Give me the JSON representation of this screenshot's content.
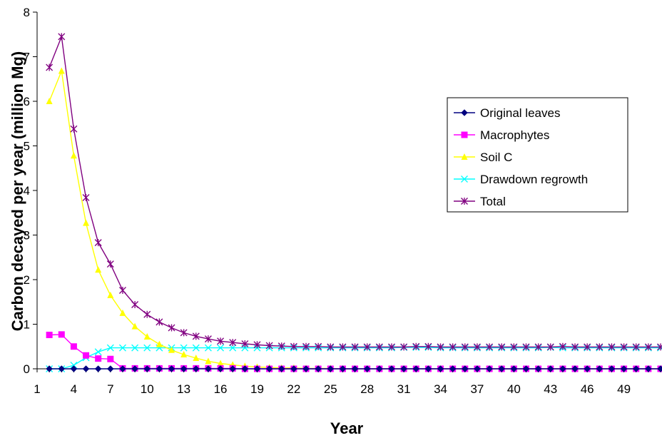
{
  "chart_data": {
    "type": "line",
    "xlabel": "Year",
    "ylabel": "Carbon decayed per year (million Mg)",
    "x": [
      2,
      3,
      4,
      5,
      6,
      7,
      8,
      9,
      10,
      11,
      12,
      13,
      14,
      15,
      16,
      17,
      18,
      19,
      20,
      21,
      22,
      23,
      24,
      25,
      26,
      27,
      28,
      29,
      30,
      31,
      32,
      33,
      34,
      35,
      36,
      37,
      38,
      39,
      40,
      41,
      42,
      43,
      44,
      45,
      46,
      47,
      48,
      49,
      50,
      51,
      52
    ],
    "xlim": [
      1,
      52
    ],
    "ylim": [
      0,
      8
    ],
    "y_ticks": [
      0,
      1,
      2,
      3,
      4,
      5,
      6,
      7,
      8
    ],
    "x_tick_labels": [
      "1",
      "4",
      "7",
      "10",
      "13",
      "16",
      "19",
      "22",
      "25",
      "28",
      "31",
      "34",
      "37",
      "40",
      "43",
      "46",
      "49"
    ],
    "grid": false,
    "legend_position": "right",
    "series": [
      {
        "name": "Original leaves",
        "color": "#000080",
        "marker": "diamond",
        "values": [
          0,
          0,
          0,
          0,
          0,
          0,
          0,
          0,
          0,
          0,
          0,
          0,
          0,
          0,
          0,
          0,
          0,
          0,
          0,
          0,
          0,
          0,
          0,
          0,
          0,
          0,
          0,
          0,
          0,
          0,
          0,
          0,
          0,
          0,
          0,
          0,
          0,
          0,
          0,
          0,
          0,
          0,
          0,
          0,
          0,
          0,
          0,
          0,
          0,
          0,
          0
        ]
      },
      {
        "name": "Macrophytes",
        "color": "#FF00FF",
        "marker": "square",
        "values": [
          0.76,
          0.77,
          0.5,
          0.3,
          0.23,
          0.22,
          0.01,
          0.01,
          0.01,
          0.01,
          0.01,
          0.01,
          0.01,
          0.01,
          0.01,
          0.01,
          0,
          0,
          0,
          0,
          0,
          0,
          0,
          0,
          0,
          0,
          0,
          0,
          0,
          0,
          0,
          0,
          0,
          0,
          0,
          0,
          0,
          0,
          0,
          0,
          0,
          0,
          0,
          0,
          0,
          0,
          0,
          0,
          0,
          0,
          0
        ]
      },
      {
        "name": "Soil C",
        "color": "#FFFF00",
        "marker": "triangle",
        "values": [
          6.0,
          6.68,
          4.78,
          3.27,
          2.22,
          1.65,
          1.25,
          0.95,
          0.72,
          0.55,
          0.42,
          0.32,
          0.24,
          0.17,
          0.12,
          0.09,
          0.06,
          0.04,
          0.03,
          0.02,
          0.02,
          0.01,
          0.01,
          0.01,
          0,
          0,
          0,
          0,
          0,
          0,
          0,
          0,
          0,
          0,
          0,
          0,
          0,
          0,
          0,
          0,
          0,
          0,
          0,
          0,
          0,
          0,
          0,
          0,
          0,
          0,
          0
        ]
      },
      {
        "name": "Drawdown regrowth",
        "color": "#00FFFF",
        "marker": "x",
        "values": [
          0,
          0,
          0.08,
          0.25,
          0.38,
          0.47,
          0.47,
          0.47,
          0.47,
          0.47,
          0.47,
          0.47,
          0.47,
          0.47,
          0.47,
          0.47,
          0.47,
          0.47,
          0.47,
          0.47,
          0.47,
          0.47,
          0.47,
          0.47,
          0.47,
          0.47,
          0.47,
          0.47,
          0.47,
          0.48,
          0.48,
          0.48,
          0.47,
          0.47,
          0.47,
          0.47,
          0.47,
          0.47,
          0.47,
          0.47,
          0.47,
          0.48,
          0.47,
          0.47,
          0.47,
          0.47,
          0.47,
          0.47,
          0.47,
          0.47,
          0.47
        ]
      },
      {
        "name": "Total",
        "color": "#800080",
        "marker": "star",
        "values": [
          6.76,
          7.45,
          5.38,
          3.84,
          2.83,
          2.35,
          1.76,
          1.44,
          1.22,
          1.05,
          0.92,
          0.81,
          0.73,
          0.67,
          0.62,
          0.59,
          0.56,
          0.54,
          0.52,
          0.51,
          0.5,
          0.5,
          0.5,
          0.49,
          0.49,
          0.49,
          0.49,
          0.49,
          0.49,
          0.49,
          0.5,
          0.5,
          0.49,
          0.49,
          0.49,
          0.49,
          0.49,
          0.49,
          0.49,
          0.49,
          0.49,
          0.49,
          0.5,
          0.49,
          0.49,
          0.49,
          0.49,
          0.49,
          0.49,
          0.49,
          0.49
        ]
      }
    ]
  }
}
